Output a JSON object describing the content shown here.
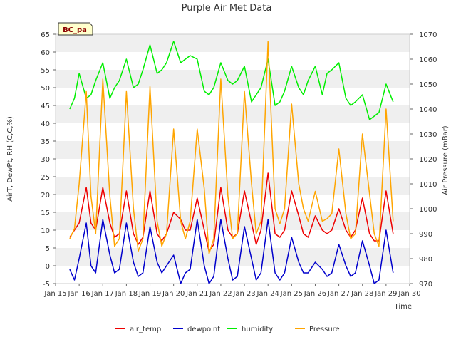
{
  "chart_data": {
    "type": "line",
    "title": "Purple Air Met Data",
    "badge": "BC_pa",
    "xlabel": "Time",
    "ylabel": "AirT, DewPt, RH (C,C,%)",
    "ylabel_right": "Air Pressure (mBar)",
    "xlim": [
      15,
      30
    ],
    "ylim": [
      -5,
      65
    ],
    "ylim_right": [
      970,
      1070
    ],
    "x_ticks": [
      15,
      16,
      17,
      18,
      19,
      20,
      21,
      22,
      23,
      24,
      25,
      26,
      27,
      28,
      29,
      30
    ],
    "x_tick_labels": [
      "Jan 15",
      "Jan 16",
      "Jan 17",
      "Jan 18",
      "Jan 19",
      "Jan 20",
      "Jan 21",
      "Jan 22",
      "Jan 23",
      "Jan 24",
      "Jan 25",
      "Jan 26",
      "Jan 27",
      "Jan 28",
      "Jan 29",
      "Jan 30"
    ],
    "y_ticks": [
      -5,
      0,
      5,
      10,
      15,
      20,
      25,
      30,
      35,
      40,
      45,
      50,
      55,
      60,
      65
    ],
    "y_ticks_right": [
      970,
      980,
      990,
      1000,
      1010,
      1020,
      1030,
      1040,
      1050,
      1060,
      1070
    ],
    "grid": "horizontal bands",
    "legend_position": "bottom",
    "colors": {
      "band": "#efefef",
      "badge_bg": "#ffffcc"
    },
    "series": [
      {
        "name": "air_temp",
        "color": "#ee0000",
        "axis": "left",
        "x": [
          15.6,
          15.8,
          16.0,
          16.3,
          16.5,
          16.7,
          17.0,
          17.3,
          17.5,
          17.7,
          18.0,
          18.3,
          18.5,
          18.7,
          19.0,
          19.3,
          19.5,
          19.7,
          20.0,
          20.3,
          20.5,
          20.7,
          21.0,
          21.3,
          21.5,
          21.7,
          22.0,
          22.3,
          22.5,
          22.7,
          23.0,
          23.3,
          23.5,
          23.7,
          24.0,
          24.3,
          24.5,
          24.7,
          25.0,
          25.3,
          25.5,
          25.7,
          26.0,
          26.3,
          26.5,
          26.7,
          27.0,
          27.3,
          27.5,
          27.7,
          28.0,
          28.3,
          28.5,
          28.7,
          29.0,
          29.3
        ],
        "y": [
          8,
          10,
          12,
          22,
          12,
          10,
          22,
          12,
          8,
          9,
          21,
          9,
          6,
          8,
          21,
          9,
          7,
          9,
          15,
          13,
          10,
          10,
          19,
          10,
          4,
          6,
          22,
          10,
          8,
          9,
          21,
          12,
          6,
          10,
          26,
          9,
          8,
          10,
          21,
          14,
          9,
          8,
          14,
          10,
          9,
          10,
          16,
          10,
          8,
          10,
          19,
          9,
          7,
          7,
          21,
          9
        ]
      },
      {
        "name": "dewpoint",
        "color": "#0000cc",
        "axis": "left",
        "x": [
          15.6,
          15.8,
          16.0,
          16.3,
          16.5,
          16.7,
          17.0,
          17.3,
          17.5,
          17.7,
          18.0,
          18.3,
          18.5,
          18.7,
          19.0,
          19.3,
          19.5,
          19.7,
          20.0,
          20.3,
          20.5,
          20.7,
          21.0,
          21.3,
          21.5,
          21.7,
          22.0,
          22.3,
          22.5,
          22.7,
          23.0,
          23.3,
          23.5,
          23.7,
          24.0,
          24.3,
          24.5,
          24.7,
          25.0,
          25.3,
          25.5,
          25.7,
          26.0,
          26.3,
          26.5,
          26.7,
          27.0,
          27.3,
          27.5,
          27.7,
          28.0,
          28.3,
          28.5,
          28.7,
          29.0,
          29.3
        ],
        "y": [
          -1,
          -4,
          2,
          12,
          0,
          -2,
          13,
          3,
          -2,
          -1,
          12,
          1,
          -3,
          -2,
          11,
          1,
          -2,
          0,
          3,
          -5,
          -2,
          -1,
          13,
          0,
          -5,
          -3,
          13,
          2,
          -4,
          -3,
          11,
          2,
          -4,
          -2,
          13,
          -2,
          -4,
          -2,
          8,
          1,
          -2,
          -2,
          1,
          -1,
          -3,
          -2,
          6,
          0,
          -3,
          -2,
          7,
          0,
          -5,
          -4,
          10,
          -2
        ]
      },
      {
        "name": "humidity",
        "color": "#00ee00",
        "axis": "left",
        "x": [
          15.6,
          15.8,
          16.0,
          16.3,
          16.5,
          16.7,
          17.0,
          17.3,
          17.5,
          17.7,
          18.0,
          18.3,
          18.5,
          18.7,
          19.0,
          19.3,
          19.5,
          19.7,
          20.0,
          20.3,
          20.5,
          20.7,
          21.0,
          21.3,
          21.5,
          21.7,
          22.0,
          22.3,
          22.5,
          22.7,
          23.0,
          23.3,
          23.5,
          23.7,
          24.0,
          24.3,
          24.5,
          24.7,
          25.0,
          25.3,
          25.5,
          25.7,
          26.0,
          26.3,
          26.5,
          26.7,
          27.0,
          27.3,
          27.5,
          27.7,
          28.0,
          28.3,
          28.5,
          28.7,
          29.0,
          29.3
        ],
        "y": [
          44,
          47,
          54,
          47,
          48,
          52,
          57,
          47,
          50,
          52,
          58,
          50,
          51,
          55,
          62,
          54,
          55,
          57,
          63,
          57,
          58,
          59,
          58,
          49,
          48,
          50,
          57,
          52,
          51,
          52,
          56,
          46,
          48,
          50,
          58,
          45,
          46,
          49,
          56,
          50,
          48,
          52,
          56,
          48,
          54,
          55,
          57,
          47,
          45,
          46,
          48,
          41,
          42,
          43,
          51,
          46
        ]
      },
      {
        "name": "Pressure",
        "color": "#ffa500",
        "axis": "right",
        "x": [
          15.6,
          15.8,
          16.0,
          16.3,
          16.5,
          16.7,
          17.0,
          17.3,
          17.5,
          17.7,
          18.0,
          18.3,
          18.5,
          18.7,
          19.0,
          19.3,
          19.5,
          19.7,
          20.0,
          20.3,
          20.5,
          20.7,
          21.0,
          21.3,
          21.5,
          21.7,
          22.0,
          22.3,
          22.5,
          22.7,
          23.0,
          23.3,
          23.5,
          23.7,
          24.0,
          24.3,
          24.5,
          24.7,
          25.0,
          25.3,
          25.5,
          25.7,
          26.0,
          26.3,
          26.5,
          26.7,
          27.0,
          27.3,
          27.5,
          27.7,
          28.0,
          28.3,
          28.5,
          28.7,
          29.0,
          29.3
        ],
        "y": [
          988,
          992,
          1010,
          1047,
          1005,
          990,
          1052,
          1005,
          985,
          988,
          1047,
          1000,
          983,
          988,
          1049,
          995,
          985,
          990,
          1032,
          995,
          988,
          995,
          1032,
          1008,
          982,
          988,
          1052,
          1005,
          988,
          990,
          1047,
          1010,
          990,
          995,
          1067,
          1000,
          994,
          1000,
          1042,
          1010,
          1000,
          995,
          1007,
          995,
          996,
          998,
          1024,
          998,
          988,
          990,
          1030,
          1006,
          990,
          985,
          1040,
          995
        ]
      }
    ]
  }
}
